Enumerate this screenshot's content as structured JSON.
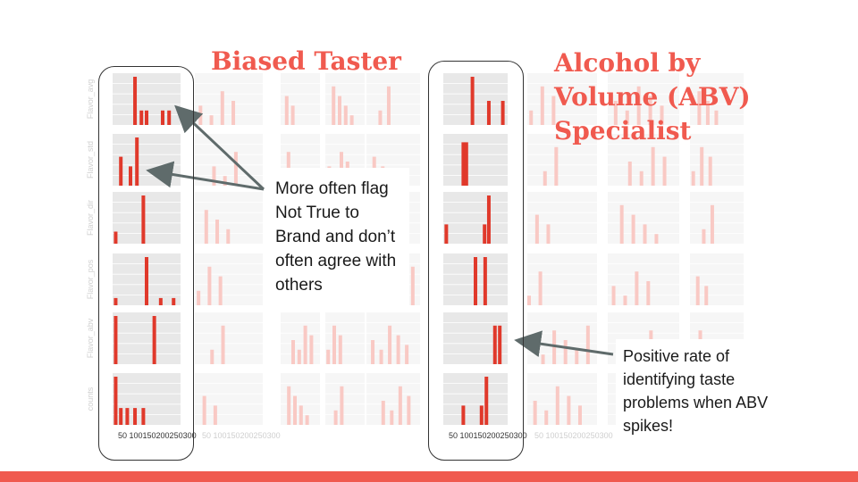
{
  "titles": {
    "left": "Biased Taster",
    "right": "Alcohol by Volume (ABV) Specialist"
  },
  "callouts": {
    "left": "More often flag Not True to Brand and don’t often agree with others",
    "right": "Positive rate of identifying taste problems when ABV spikes!"
  },
  "row_labels": [
    "Flavor_avg",
    "Flavor_std",
    "Flavor_dir",
    "Flavor_pos",
    "Flavor_abv",
    "counts"
  ],
  "x_ticks_bottom": "50 100150200250300",
  "colors": {
    "accent": "#f05a4f",
    "bar": "#e0392b",
    "faded_bar": "#f9c9c4",
    "panel": "#e8e8e8",
    "arrow": "#5f6b6b"
  },
  "chart_data": [
    {
      "type": "bar",
      "title": "",
      "rows": [
        "Flavor_avg",
        "Flavor_std",
        "Flavor_dir",
        "Flavor_pos",
        "Flavor_abv",
        "counts"
      ],
      "highlighted_columns": [
        "Biased Taster",
        "Alcohol by Volume (ABV) Specialist"
      ]
    }
  ]
}
